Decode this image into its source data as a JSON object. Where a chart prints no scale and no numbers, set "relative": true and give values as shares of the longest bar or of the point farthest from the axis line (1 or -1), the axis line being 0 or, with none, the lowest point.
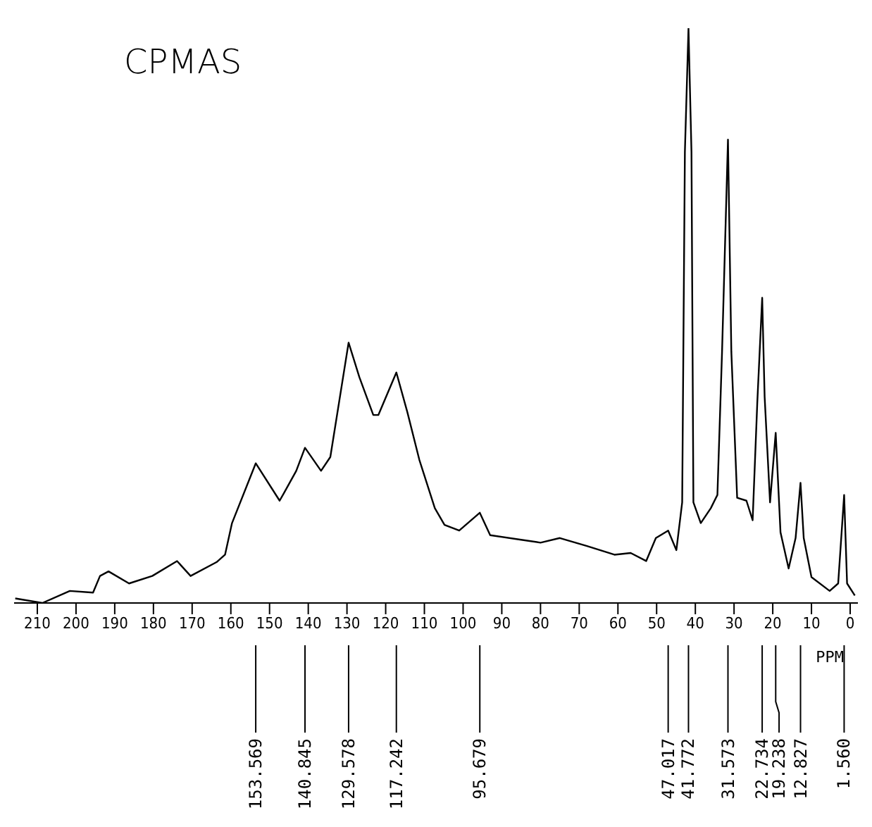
{
  "chart_data": {
    "type": "line",
    "title": "CPMAS",
    "xlabel": "PPM",
    "relative": true,
    "xlim": [
      216,
      -2
    ],
    "xticks": [
      210,
      200,
      190,
      180,
      170,
      160,
      150,
      140,
      130,
      120,
      110,
      100,
      90,
      80,
      70,
      60,
      50,
      40,
      30,
      20,
      10,
      0
    ],
    "marker": "none",
    "line_style": "solid",
    "series": [
      {
        "color": "#000000",
        "x": [
          215.7,
          208.7,
          201.6,
          195.6,
          193.8,
          191.6,
          186.3,
          180.3,
          173.9,
          170.4,
          163.7,
          161.5,
          159.7,
          153.57,
          147.4,
          146.3,
          143.1,
          140.85,
          136.7,
          134.3,
          129.58,
          126.8,
          123.2,
          121.9,
          117.24,
          114.4,
          111.3,
          107.3,
          104.8,
          101,
          95.68,
          93,
          85,
          80,
          75,
          68.0,
          60.9,
          56.7,
          52.7,
          50.2,
          47.02,
          44.9,
          43.4,
          42.7,
          41.77,
          41.0,
          40.5,
          38.6,
          36.0,
          34.3,
          33.1,
          31.57,
          30.7,
          29.2,
          26.8,
          25.2,
          24.0,
          22.73,
          22.1,
          20.7,
          19.24,
          18.0,
          15.9,
          14.1,
          12.83,
          12.0,
          10.0,
          5.3,
          3.1,
          1.56,
          0.8,
          -1.2
        ],
        "values": [
          0.008,
          0,
          0.021,
          0.018,
          0.047,
          0.055,
          0.034,
          0.047,
          0.073,
          0.047,
          0.071,
          0.084,
          0.139,
          0.243,
          0.178,
          0.191,
          0.23,
          0.27,
          0.23,
          0.254,
          0.453,
          0.393,
          0.327,
          0.327,
          0.401,
          0.332,
          0.249,
          0.165,
          0.136,
          0.126,
          0.157,
          0.118,
          0.11,
          0.105,
          0.113,
          0.099,
          0.084,
          0.087,
          0.073,
          0.113,
          0.126,
          0.092,
          0.175,
          0.785,
          1,
          0.785,
          0.175,
          0.139,
          0.165,
          0.188,
          0.437,
          0.806,
          0.437,
          0.183,
          0.178,
          0.144,
          0.348,
          0.531,
          0.359,
          0.175,
          0.296,
          0.123,
          0.06,
          0.113,
          0.209,
          0.113,
          0.045,
          0.021,
          0.034,
          0.188,
          0.034,
          0.013
        ]
      }
    ],
    "annotations": [
      {
        "text": "153.569",
        "x": 153.569
      },
      {
        "text": "140.845",
        "x": 140.845
      },
      {
        "text": "129.578",
        "x": 129.578
      },
      {
        "text": "117.242",
        "x": 117.242
      },
      {
        "text": "95.679",
        "x": 95.679
      },
      {
        "text": "47.017",
        "x": 47.017
      },
      {
        "text": "41.772",
        "x": 41.772
      },
      {
        "text": "31.573",
        "x": 31.573
      },
      {
        "text": "22.734",
        "x": 22.734
      },
      {
        "text": "19.238",
        "x": 19.238
      },
      {
        "text": "12.827",
        "x": 12.827
      },
      {
        "text": "1.560",
        "x": 1.56
      }
    ]
  }
}
